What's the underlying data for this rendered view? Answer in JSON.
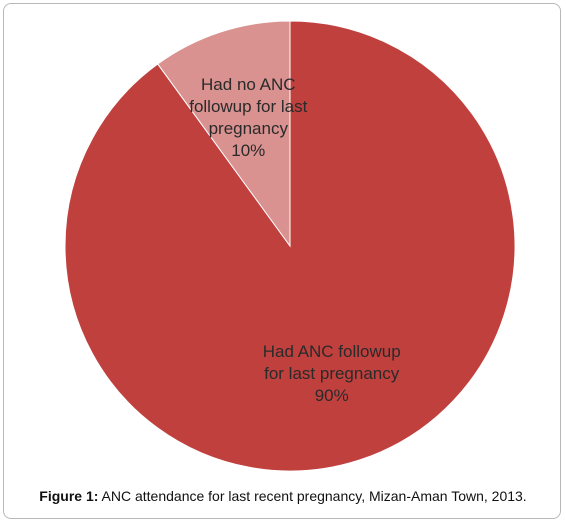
{
  "chart_data": {
    "type": "pie",
    "categories": [
      "Had ANC followup for last pregnancy",
      "Had no ANC followup for last pregnancy"
    ],
    "values": [
      90,
      10
    ],
    "value_labels": [
      "90%",
      "10%"
    ],
    "colors": [
      "#c0403e",
      "#d99290"
    ],
    "caption_label": "Figure 1:",
    "caption": "ANC attendance for last recent pregnancy, Mizan-Aman Town, 2013."
  }
}
